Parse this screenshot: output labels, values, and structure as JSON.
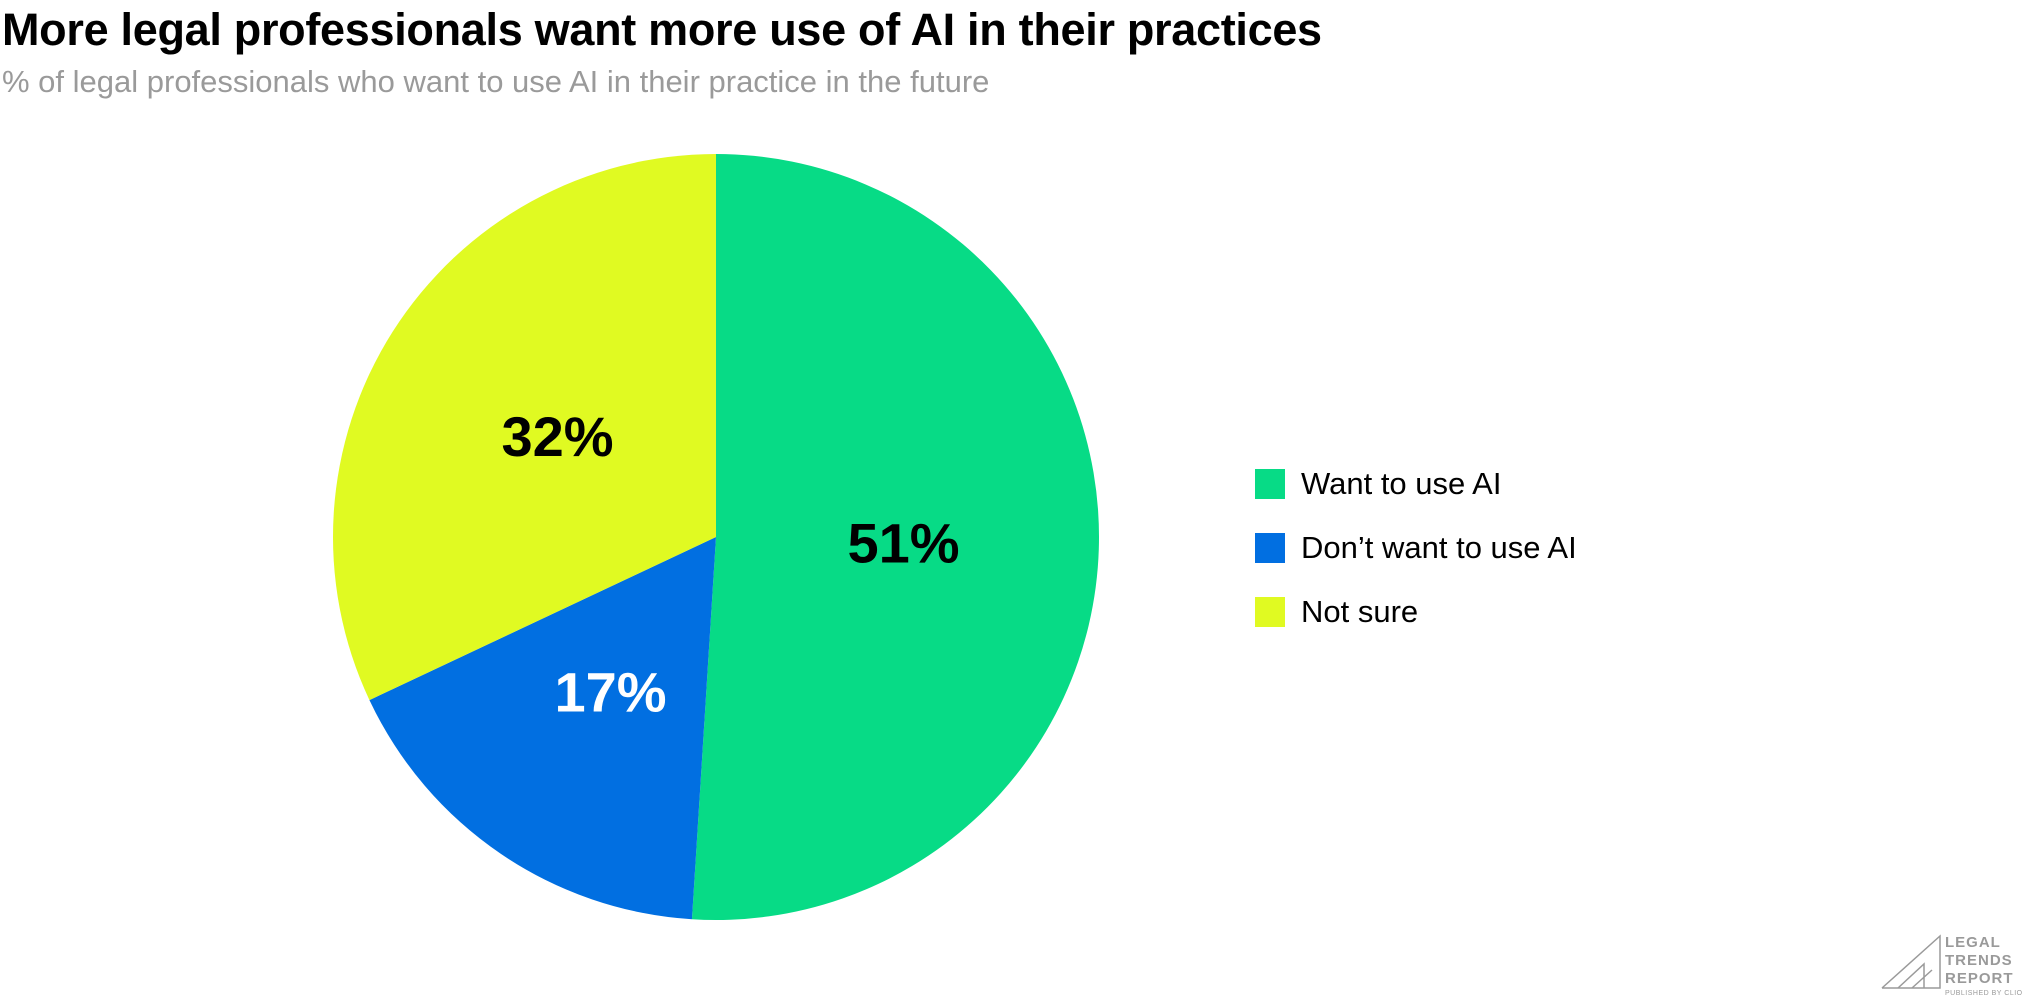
{
  "chart_data": {
    "type": "pie",
    "title": "More legal professionals want more use of AI in their practices",
    "subtitle": "% of legal professionals who want to use AI in their practice in the future",
    "slices": [
      {
        "name": "Want to use AI",
        "value": 51,
        "label": "51%",
        "color": "#07db86",
        "label_color": "#000000"
      },
      {
        "name": "Don’t want to use AI",
        "value": 17,
        "label": "17%",
        "color": "#016fe1",
        "label_color": "#ffffff"
      },
      {
        "name": "Not sure",
        "value": 32,
        "label": "32%",
        "color": "#e0fa22",
        "label_color": "#000000"
      }
    ],
    "legend": {
      "position": "right"
    }
  },
  "logo": {
    "lines": [
      "LEGAL",
      "TRENDS",
      "REPORT"
    ],
    "tagline": "PUBLISHED BY CLIO"
  }
}
